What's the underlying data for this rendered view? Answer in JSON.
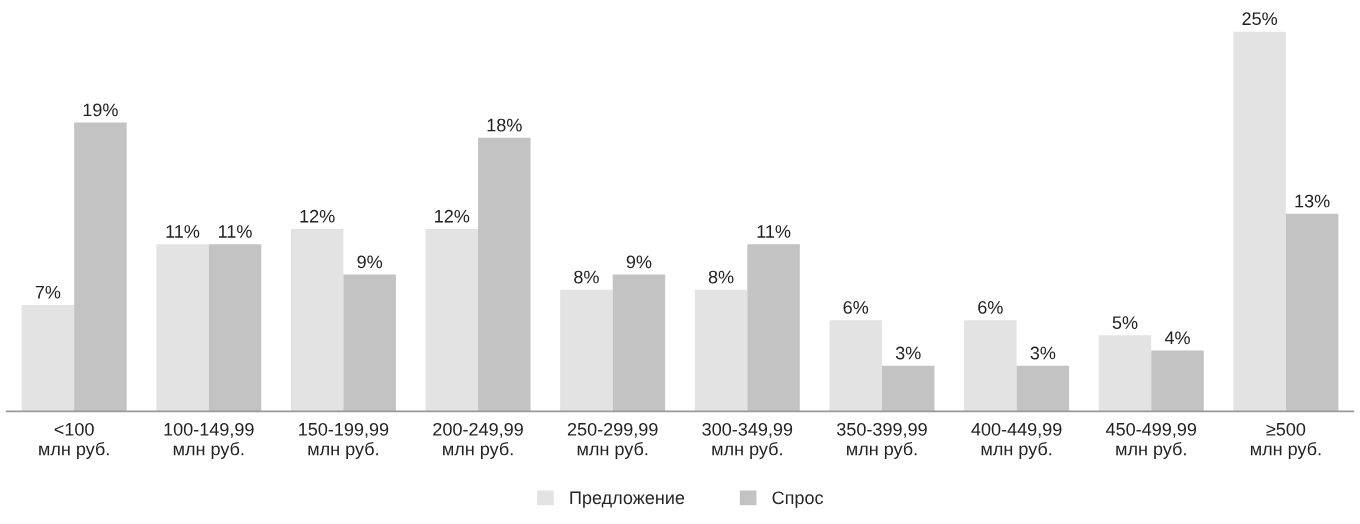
{
  "chart_data": {
    "type": "bar",
    "categories": [
      "<100\nмлн руб.",
      "100-149,99\nмлн руб.",
      "150-199,99\nмлн руб.",
      "200-249,99\nмлн руб.",
      "250-299,99\nмлн руб.",
      "300-349,99\nмлн руб.",
      "350-399,99\nмлн руб.",
      "400-449,99\nмлн руб.",
      "450-499,99\nмлн руб.",
      "≥500\nмлн руб."
    ],
    "series": [
      {
        "name": "Предложение",
        "color": "#e3e3e3",
        "values": [
          7,
          11,
          12,
          12,
          8,
          8,
          6,
          6,
          5,
          25
        ],
        "value_labels": [
          "7%",
          "11%",
          "12%",
          "12%",
          "8%",
          "8%",
          "6%",
          "6%",
          "5%",
          "25%"
        ]
      },
      {
        "name": "Спрос",
        "color": "#c3c3c3",
        "values": [
          19,
          11,
          9,
          18,
          9,
          11,
          3,
          3,
          4,
          13
        ],
        "value_labels": [
          "19%",
          "11%",
          "9%",
          "18%",
          "9%",
          "11%",
          "3%",
          "3%",
          "4%",
          "13%"
        ]
      }
    ],
    "legend": "bottom",
    "grid": false
  }
}
